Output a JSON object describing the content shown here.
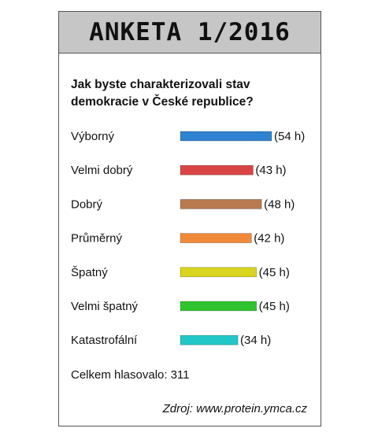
{
  "header": {
    "title": "ANKETA 1/2016"
  },
  "question": "Jak byste charakterizovali stav demokracie v České republice?",
  "total": {
    "label": "Celkem hlasovalo:",
    "value": "311"
  },
  "source": "Zdroj: www.protein.ymca.cz",
  "chart_data": {
    "type": "bar",
    "orientation": "horizontal",
    "categories": [
      "Výborný",
      "Velmi dobrý",
      "Dobrý",
      "Průměrný",
      "Špatný",
      "Velmi špatný",
      "Katastrofální"
    ],
    "values": [
      54,
      43,
      48,
      42,
      45,
      45,
      34
    ],
    "value_labels": [
      "(54 h)",
      "(43 h)",
      "(48 h)",
      "(42 h)",
      "(45 h)",
      "(45 h)",
      "(34 h)"
    ],
    "colors": [
      "#2f82d0",
      "#d94545",
      "#b87a4e",
      "#f08a3a",
      "#d8d420",
      "#2fc42f",
      "#22c8c8"
    ],
    "grid": false,
    "legend": "none"
  }
}
